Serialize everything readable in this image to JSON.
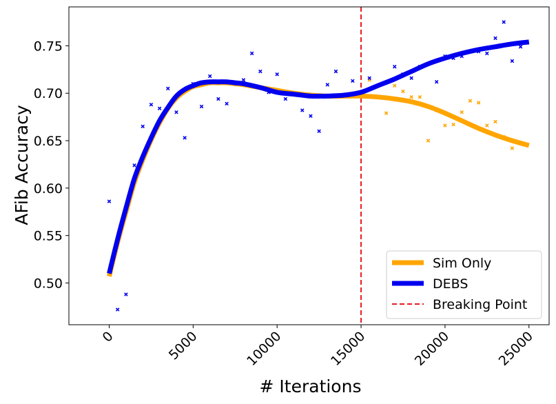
{
  "chart_data": {
    "type": "line",
    "xlabel": "# Iterations",
    "ylabel": "AFib Accuracy",
    "xlim": [
      -2400,
      26200
    ],
    "ylim": [
      0.456,
      0.791
    ],
    "xticks": [
      0,
      5000,
      10000,
      15000,
      20000,
      25000
    ],
    "xtick_labels": [
      "0",
      "5000",
      "10000",
      "15000",
      "20000",
      "25000"
    ],
    "yticks": [
      0.5,
      0.55,
      0.6,
      0.65,
      0.7,
      0.75
    ],
    "ytick_labels": [
      "0.50",
      "0.55",
      "0.60",
      "0.65",
      "0.70",
      "0.75"
    ],
    "grid": false,
    "legend_position": "bottom-right",
    "breaking_point": {
      "name": "Breaking Point",
      "x": 15000,
      "color": "#e8191f",
      "style": "dashed"
    },
    "series": [
      {
        "name": "Sim Only",
        "color": "#ffa500",
        "kind": "fit-line",
        "x": [
          0,
          500,
          1000,
          1500,
          2000,
          2500,
          3000,
          3500,
          4000,
          4500,
          5000,
          5500,
          6000,
          6500,
          7000,
          7500,
          8000,
          9000,
          10000,
          11000,
          12000,
          13000,
          14000,
          15000,
          16000,
          17000,
          18000,
          19000,
          20000,
          21000,
          22000,
          23000,
          24000,
          25000
        ],
        "y": [
          0.507,
          0.543,
          0.575,
          0.606,
          0.63,
          0.651,
          0.669,
          0.684,
          0.695,
          0.702,
          0.707,
          0.709,
          0.711,
          0.711,
          0.711,
          0.71,
          0.709,
          0.706,
          0.703,
          0.7,
          0.698,
          0.697,
          0.697,
          0.697,
          0.696,
          0.694,
          0.691,
          0.686,
          0.679,
          0.671,
          0.663,
          0.656,
          0.65,
          0.645
        ]
      },
      {
        "name": "DEBS",
        "color": "#0000ee",
        "kind": "fit-line",
        "x": [
          0,
          500,
          1000,
          1500,
          2000,
          2500,
          3000,
          3500,
          4000,
          4500,
          5000,
          5500,
          6000,
          6500,
          7000,
          7500,
          8000,
          9000,
          10000,
          11000,
          12000,
          12600,
          13000,
          14000,
          15000,
          16000,
          17000,
          18000,
          19000,
          20000,
          21000,
          22000,
          23000,
          24000,
          25000
        ],
        "y": [
          0.51,
          0.546,
          0.579,
          0.61,
          0.633,
          0.653,
          0.671,
          0.685,
          0.697,
          0.704,
          0.708,
          0.711,
          0.712,
          0.712,
          0.712,
          0.711,
          0.71,
          0.706,
          0.701,
          0.699,
          0.697,
          0.697,
          0.697,
          0.698,
          0.701,
          0.708,
          0.715,
          0.723,
          0.731,
          0.737,
          0.742,
          0.746,
          0.749,
          0.752,
          0.754
        ]
      },
      {
        "name": "Sim Only points",
        "color": "#ffa500",
        "kind": "scatter",
        "x": [
          15500,
          16500,
          17000,
          17500,
          18000,
          18500,
          19000,
          19500,
          20000,
          20500,
          21000,
          21500,
          22000,
          22500,
          23000,
          23500,
          24000
        ],
        "y": [
          0.714,
          0.679,
          0.708,
          0.702,
          0.696,
          0.696,
          0.65,
          0.682,
          0.666,
          0.667,
          0.68,
          0.692,
          0.69,
          0.666,
          0.67,
          0.654,
          0.642
        ]
      },
      {
        "name": "DEBS points",
        "color": "#0000ee",
        "kind": "scatter",
        "x": [
          0,
          500,
          1000,
          1500,
          2000,
          2500,
          3000,
          3500,
          4000,
          4500,
          5000,
          5500,
          6000,
          6500,
          7000,
          7500,
          8000,
          8500,
          9000,
          9500,
          10000,
          10500,
          11500,
          12000,
          12500,
          13000,
          13500,
          14500,
          15500,
          17000,
          17500,
          18000,
          18500,
          19500,
          20000,
          20500,
          21000,
          22000,
          22500,
          23000,
          23500,
          24000,
          24500
        ],
        "y": [
          0.586,
          0.472,
          0.488,
          0.624,
          0.665,
          0.688,
          0.684,
          0.705,
          0.68,
          0.653,
          0.71,
          0.686,
          0.718,
          0.694,
          0.689,
          0.71,
          0.714,
          0.742,
          0.723,
          0.701,
          0.72,
          0.694,
          0.682,
          0.676,
          0.66,
          0.709,
          0.723,
          0.713,
          0.716,
          0.728,
          0.72,
          0.716,
          0.728,
          0.712,
          0.739,
          0.737,
          0.739,
          0.744,
          0.742,
          0.758,
          0.775,
          0.734,
          0.749
        ]
      }
    ],
    "legend": [
      {
        "label": "Sim Only",
        "color": "#ffa500",
        "style": "solid-thick"
      },
      {
        "label": "DEBS",
        "color": "#0000ee",
        "style": "solid-thick"
      },
      {
        "label": "Breaking Point",
        "color": "#e8191f",
        "style": "dashed"
      }
    ]
  }
}
